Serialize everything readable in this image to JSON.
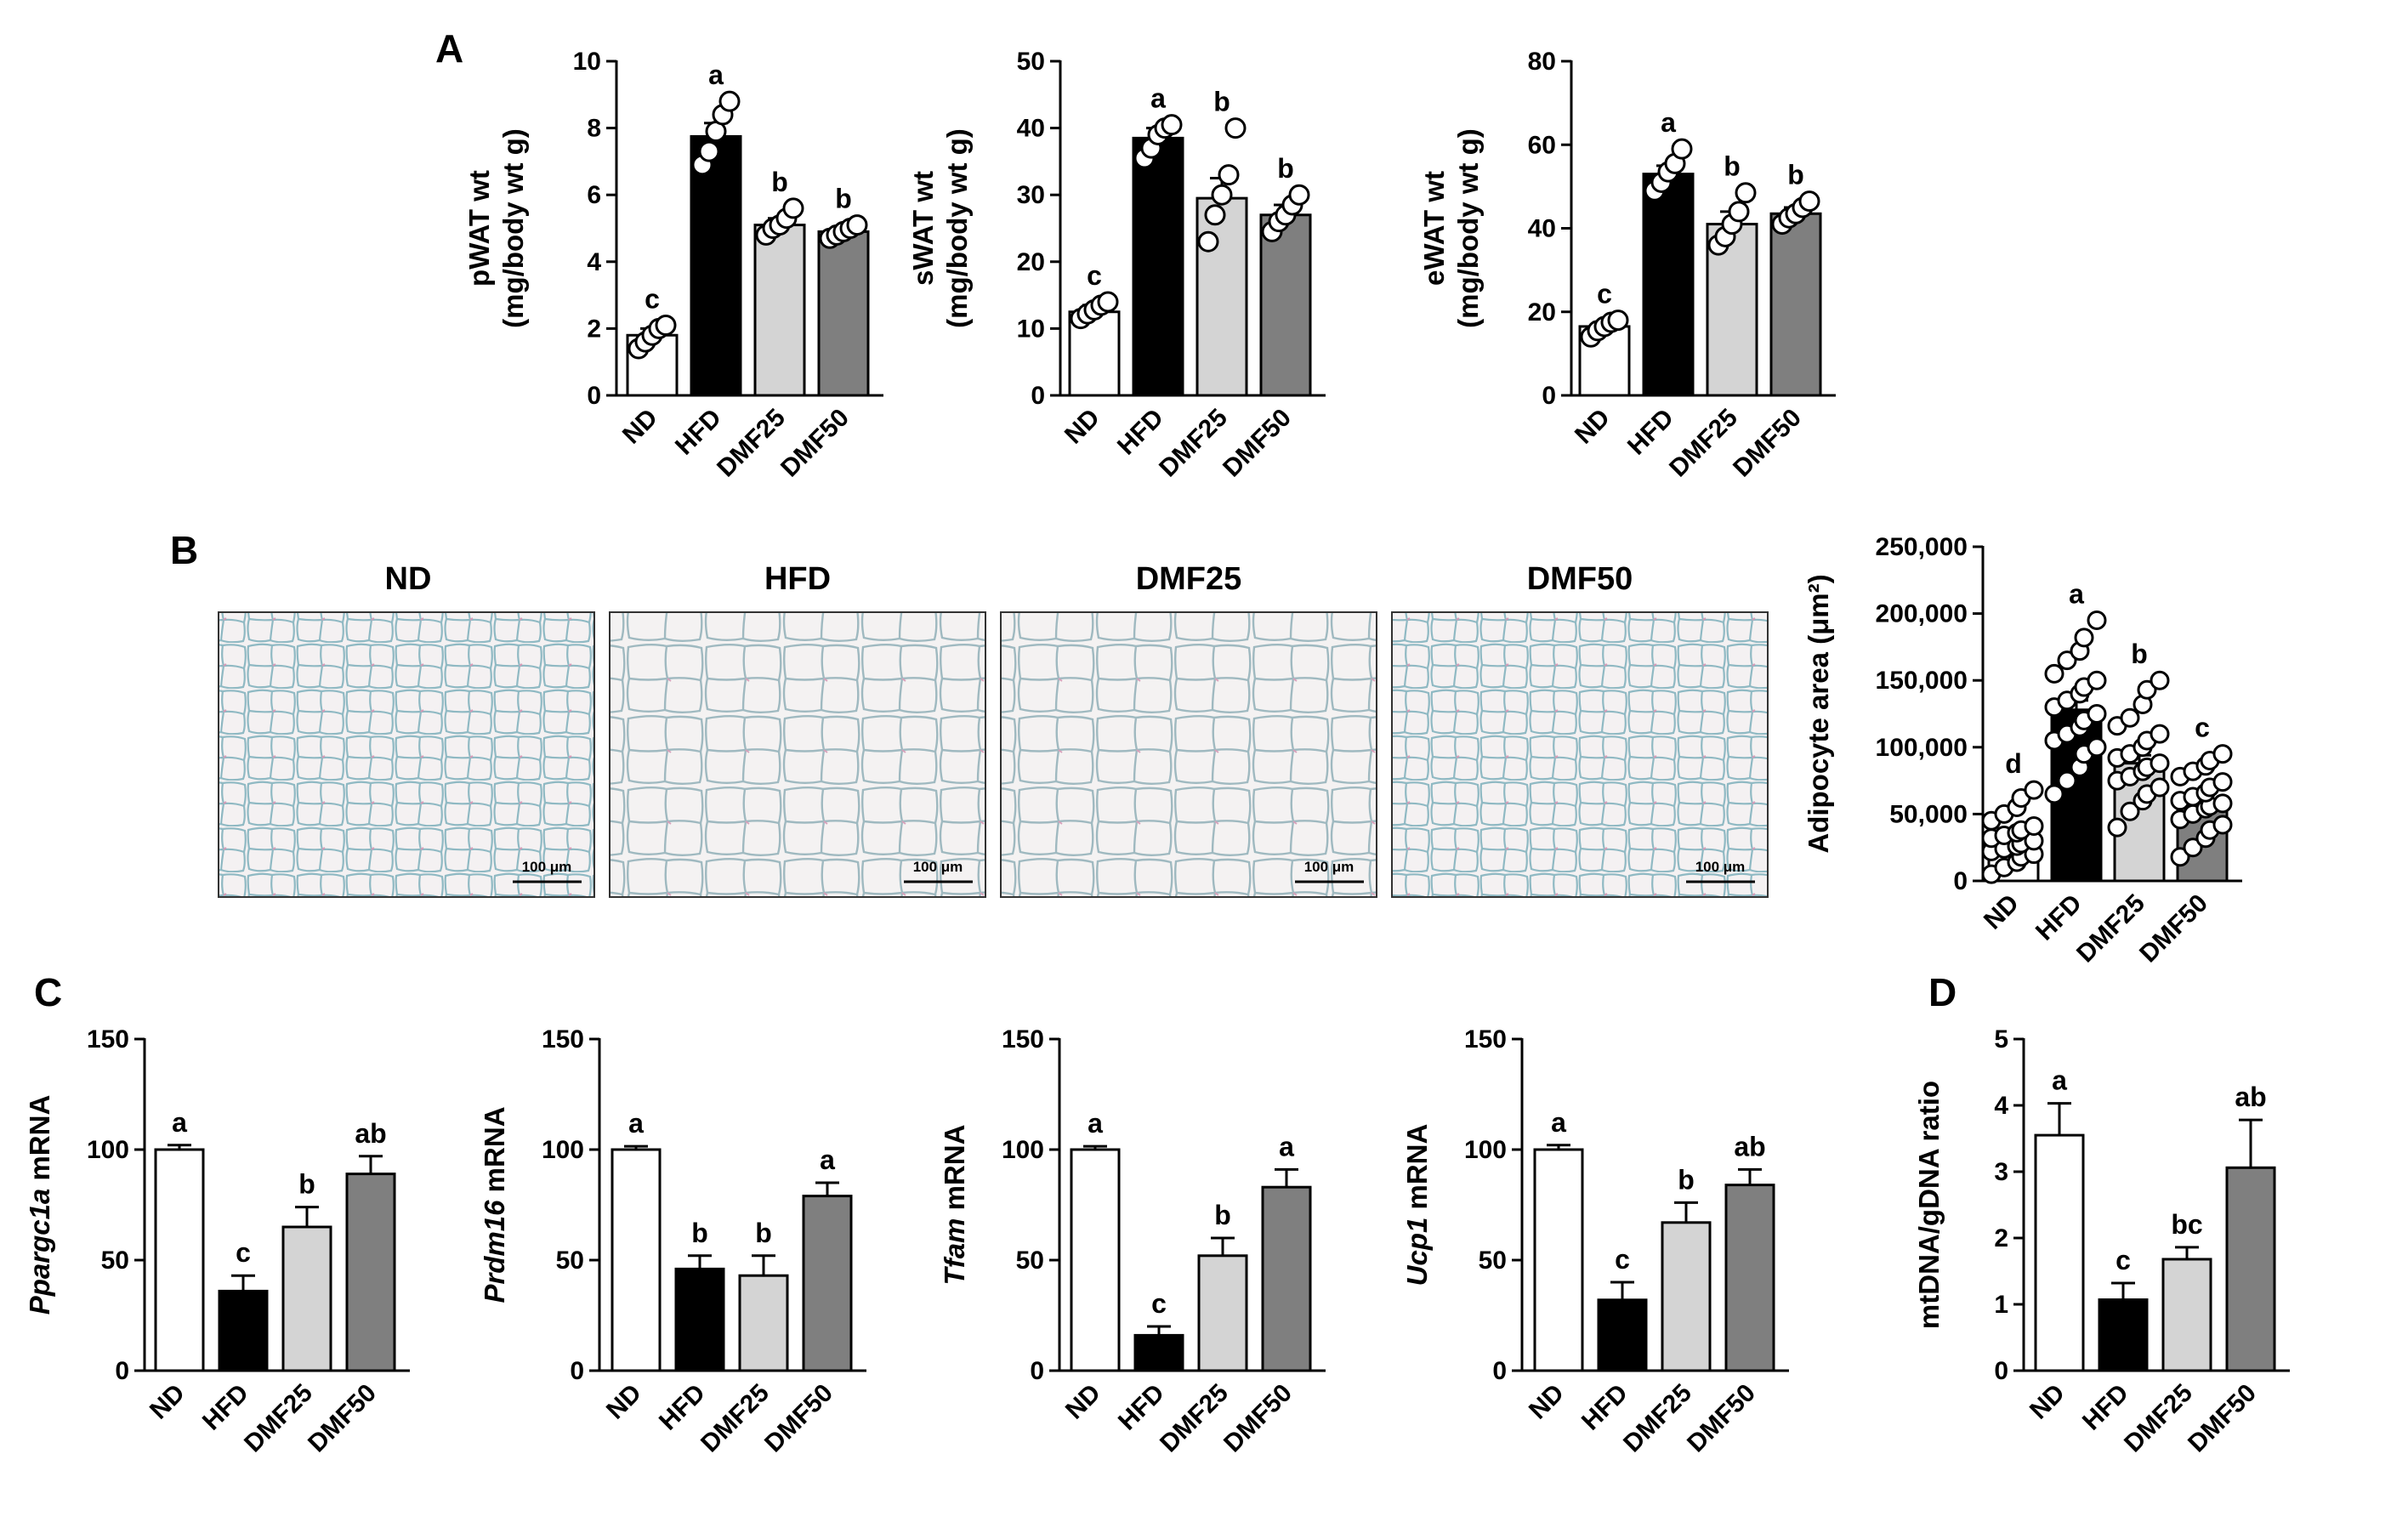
{
  "figure": {
    "panel_labels": [
      "A",
      "B",
      "C",
      "D"
    ],
    "colors": {
      "ND": "#ffffff",
      "HFD": "#000000",
      "DMF25": "#d4d4d4",
      "DMF50": "#7f7f7f",
      "stroke": "#000000",
      "dot_fill": "#ffffff"
    }
  },
  "histology": {
    "titles": [
      "ND",
      "HFD",
      "DMF25",
      "DMF50"
    ],
    "scale_bar_label": "100 μm",
    "panel_icon": "adipose-tissue-micrograph"
  },
  "chart_data": [
    {
      "id": "pwat",
      "type": "bar",
      "panel": "A",
      "categories": [
        "ND",
        "HFD",
        "DMF25",
        "DMF50"
      ],
      "values": [
        1.8,
        7.75,
        5.1,
        4.9
      ],
      "errors": [
        0.2,
        0.4,
        0.2,
        0.15
      ],
      "letters": [
        "c",
        "a",
        "b",
        "b"
      ],
      "points": [
        [
          1.4,
          1.6,
          1.8,
          2.0,
          2.1
        ],
        [
          6.9,
          7.3,
          7.9,
          8.4,
          8.8
        ],
        [
          4.8,
          5.0,
          5.1,
          5.3,
          5.6
        ],
        [
          4.7,
          4.8,
          4.9,
          5.0,
          5.1
        ]
      ],
      "ylim": [
        0,
        10
      ],
      "yticks": [
        0,
        2,
        4,
        6,
        8,
        10
      ],
      "ytick_labels": [
        "0",
        "2",
        "4",
        "6",
        "8",
        "10"
      ],
      "ylabel": [
        "pWAT wt",
        "(mg/body wt g)"
      ]
    },
    {
      "id": "swat",
      "type": "bar",
      "panel": "A",
      "categories": [
        "ND",
        "HFD",
        "DMF25",
        "DMF50"
      ],
      "values": [
        12.5,
        38.5,
        29.5,
        27.0
      ],
      "errors": [
        1.0,
        1.5,
        3.0,
        1.5
      ],
      "letters": [
        "c",
        "a",
        "b",
        "b"
      ],
      "points": [
        [
          11.5,
          12.2,
          12.8,
          13.5,
          14.0
        ],
        [
          35.5,
          37.0,
          39.0,
          40.0,
          40.5
        ],
        [
          23.0,
          27.0,
          30.0,
          33.0,
          40.0
        ],
        [
          24.5,
          26.0,
          27.0,
          28.5,
          30.0
        ]
      ],
      "ylim": [
        0,
        50
      ],
      "yticks": [
        0,
        10,
        20,
        30,
        40,
        50
      ],
      "ytick_labels": [
        "0",
        "10",
        "20",
        "30",
        "40",
        "50"
      ],
      "ylabel": [
        "sWAT wt",
        "(mg/body wt g)"
      ]
    },
    {
      "id": "ewat",
      "type": "bar",
      "panel": "A",
      "categories": [
        "ND",
        "HFD",
        "DMF25",
        "DMF50"
      ],
      "values": [
        16.5,
        53.0,
        41.0,
        43.5
      ],
      "errors": [
        1.0,
        2.0,
        3.0,
        1.5
      ],
      "letters": [
        "c",
        "a",
        "b",
        "b"
      ],
      "points": [
        [
          14.0,
          15.5,
          16.5,
          17.5,
          18.0
        ],
        [
          49.0,
          51.0,
          53.5,
          55.5,
          59.0
        ],
        [
          36.0,
          38.0,
          41.0,
          44.0,
          48.5
        ],
        [
          41.0,
          42.5,
          43.5,
          45.0,
          46.5
        ]
      ],
      "ylim": [
        0,
        80
      ],
      "yticks": [
        0,
        20,
        40,
        60,
        80
      ],
      "ytick_labels": [
        "0",
        "20",
        "40",
        "60",
        "80"
      ],
      "ylabel": [
        "eWAT wt",
        "(mg/body wt g)"
      ]
    },
    {
      "id": "adipocyte",
      "type": "bar",
      "panel": "B",
      "categories": [
        "ND",
        "HFD",
        "DMF25",
        "DMF50"
      ],
      "values": [
        30000,
        128000,
        88000,
        58000
      ],
      "errors": [
        4000,
        7000,
        6000,
        4500
      ],
      "letters": [
        "d",
        "a",
        "b",
        "c"
      ],
      "points": [
        [
          5000,
          10000,
          14000,
          18000,
          20000,
          22000,
          24000,
          26000,
          28000,
          30000,
          32000,
          34000,
          36000,
          38000,
          41000,
          45000,
          50000,
          55000,
          62000,
          68000
        ],
        [
          65000,
          75000,
          85000,
          95000,
          100000,
          105000,
          110000,
          115000,
          120000,
          125000,
          130000,
          135000,
          140000,
          145000,
          150000,
          155000,
          165000,
          172000,
          182000,
          195000
        ],
        [
          40000,
          52000,
          60000,
          65000,
          70000,
          75000,
          78000,
          82000,
          85000,
          88000,
          92000,
          95000,
          100000,
          105000,
          110000,
          116000,
          122000,
          132000,
          143000,
          150000
        ],
        [
          18000,
          25000,
          32000,
          38000,
          42000,
          46000,
          50000,
          54000,
          56000,
          58000,
          60000,
          63000,
          66000,
          70000,
          74000,
          78000,
          82000,
          86000,
          90000,
          95000
        ]
      ],
      "ylim": [
        0,
        250000
      ],
      "yticks": [
        0,
        50000,
        100000,
        150000,
        200000,
        250000
      ],
      "ytick_labels": [
        "0",
        "50,000",
        "100,000",
        "150,000",
        "200,000",
        "250,000"
      ],
      "ylabel": [
        "Adipocyte area (μm²)"
      ]
    },
    {
      "id": "ppargc1a",
      "type": "bar",
      "panel": "C",
      "categories": [
        "ND",
        "HFD",
        "DMF25",
        "DMF50"
      ],
      "values": [
        100,
        36,
        65,
        89
      ],
      "errors": [
        2,
        7,
        9,
        8
      ],
      "letters": [
        "a",
        "c",
        "b",
        "ab"
      ],
      "points": [],
      "ylim": [
        0,
        150
      ],
      "yticks": [
        0,
        50,
        100,
        150
      ],
      "ytick_labels": [
        "0",
        "50",
        "100",
        "150"
      ],
      "ylabel_gene": "Ppargc1a",
      "ylabel_suffix": " mRNA"
    },
    {
      "id": "prdm16",
      "type": "bar",
      "panel": "C",
      "categories": [
        "ND",
        "HFD",
        "DMF25",
        "DMF50"
      ],
      "values": [
        100,
        46,
        43,
        79
      ],
      "errors": [
        1.5,
        6,
        9,
        6
      ],
      "letters": [
        "a",
        "b",
        "b",
        "a"
      ],
      "points": [],
      "ylim": [
        0,
        150
      ],
      "yticks": [
        0,
        50,
        100,
        150
      ],
      "ytick_labels": [
        "0",
        "50",
        "100",
        "150"
      ],
      "ylabel_gene": "Prdm16",
      "ylabel_suffix": " mRNA"
    },
    {
      "id": "tfam",
      "type": "bar",
      "panel": "C",
      "categories": [
        "ND",
        "HFD",
        "DMF25",
        "DMF50"
      ],
      "values": [
        100,
        16,
        52,
        83
      ],
      "errors": [
        1.5,
        4,
        8,
        8
      ],
      "letters": [
        "a",
        "c",
        "b",
        "a"
      ],
      "points": [],
      "ylim": [
        0,
        150
      ],
      "yticks": [
        0,
        50,
        100,
        150
      ],
      "ytick_labels": [
        "0",
        "50",
        "100",
        "150"
      ],
      "ylabel_gene": "Tfam",
      "ylabel_suffix": " mRNA"
    },
    {
      "id": "ucp1",
      "type": "bar",
      "panel": "C",
      "categories": [
        "ND",
        "HFD",
        "DMF25",
        "DMF50"
      ],
      "values": [
        100,
        32,
        67,
        84
      ],
      "errors": [
        2,
        8,
        9,
        7
      ],
      "letters": [
        "a",
        "c",
        "b",
        "ab"
      ],
      "points": [],
      "ylim": [
        0,
        150
      ],
      "yticks": [
        0,
        50,
        100,
        150
      ],
      "ytick_labels": [
        "0",
        "50",
        "100",
        "150"
      ],
      "ylabel_gene": "Ucp1",
      "ylabel_suffix": " mRNA"
    },
    {
      "id": "mtdna",
      "type": "bar",
      "panel": "D",
      "categories": [
        "ND",
        "HFD",
        "DMF25",
        "DMF50"
      ],
      "values": [
        3.55,
        1.07,
        1.68,
        3.06
      ],
      "errors": [
        0.48,
        0.25,
        0.18,
        0.72
      ],
      "letters": [
        "a",
        "c",
        "bc",
        "ab"
      ],
      "points": [],
      "ylim": [
        0,
        5
      ],
      "yticks": [
        0,
        1,
        2,
        3,
        4,
        5
      ],
      "ytick_labels": [
        "0",
        "1",
        "2",
        "3",
        "4",
        "5"
      ],
      "ylabel": [
        "mtDNA/gDNA ratio"
      ]
    }
  ]
}
